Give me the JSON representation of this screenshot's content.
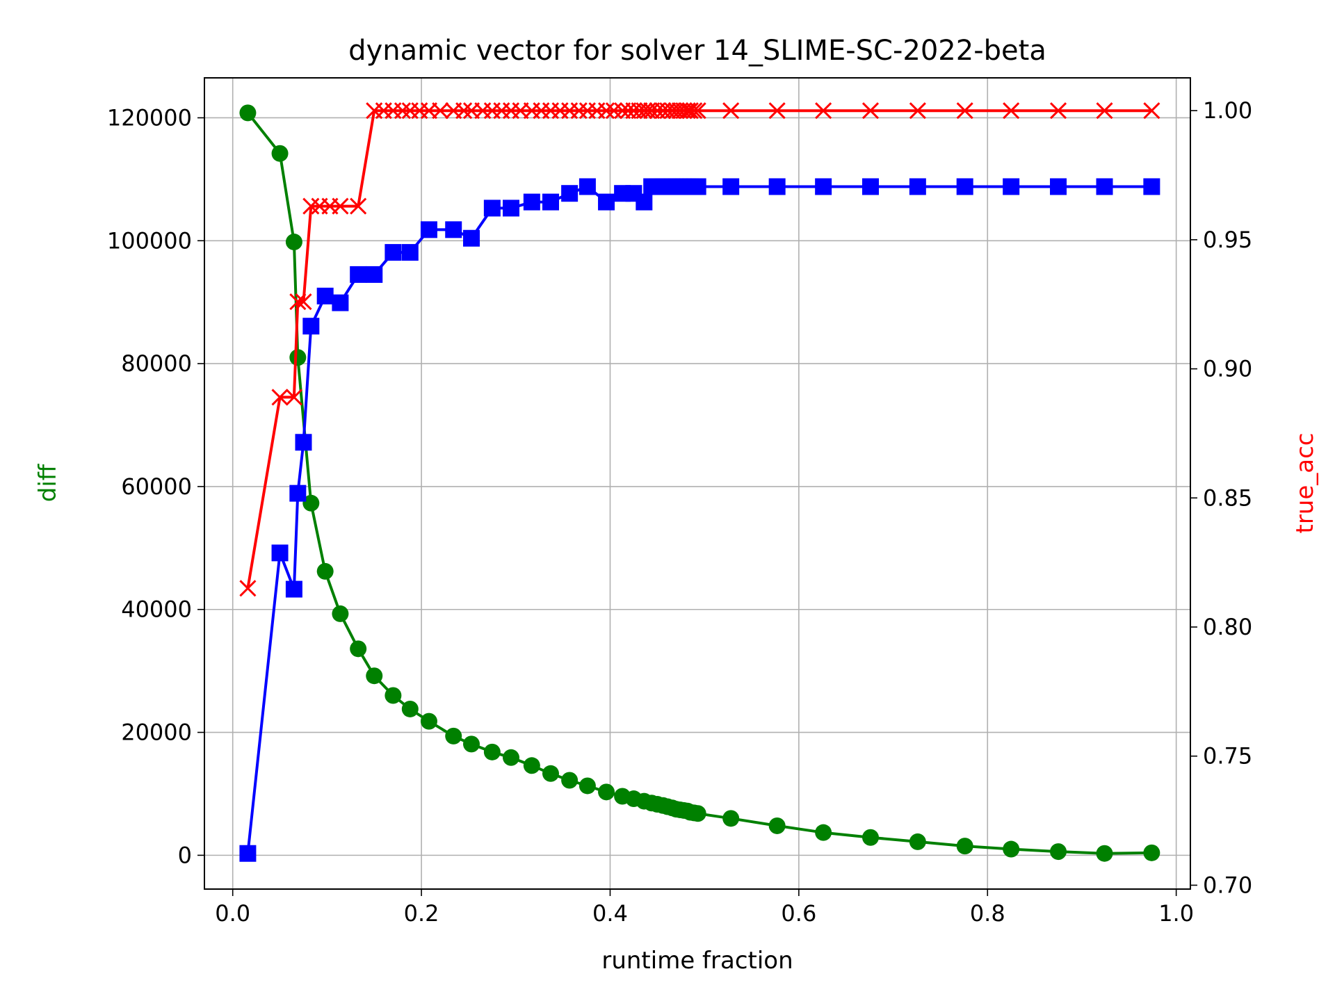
{
  "chart_data": {
    "type": "line",
    "title": "dynamic vector for solver 14_SLIME-SC-2022-beta",
    "xlabel": "runtime fraction",
    "ylabel": "diff",
    "y2label": "true_acc",
    "xlim": [
      -0.03,
      1.015
    ],
    "ylim": [
      -5500,
      126500
    ],
    "y2lim": [
      0.6985,
      1.0127
    ],
    "xticks": [
      "0.0",
      "0.2",
      "0.4",
      "0.6",
      "0.8",
      "1.0"
    ],
    "xtick_values": [
      0.0,
      0.2,
      0.4,
      0.6,
      0.8,
      1.0
    ],
    "yticks": [
      "0",
      "20000",
      "40000",
      "60000",
      "80000",
      "100000",
      "120000"
    ],
    "ytick_values": [
      0,
      20000,
      40000,
      60000,
      80000,
      100000,
      120000
    ],
    "y2ticks": [
      "0.70",
      "0.75",
      "0.80",
      "0.85",
      "0.90",
      "0.95",
      "1.00"
    ],
    "y2tick_values": [
      0.7,
      0.75,
      0.8,
      0.85,
      0.9,
      0.95,
      1.0
    ],
    "grid": true,
    "colors": {
      "diff": "#008000",
      "blue_series": "#0000ff",
      "true_acc": "#ff0000"
    },
    "series": [
      {
        "axis": "left",
        "color": "#008000",
        "marker": "circle",
        "x": [
          0.016,
          0.05,
          0.065,
          0.069,
          0.083,
          0.098,
          0.114,
          0.133,
          0.15,
          0.17,
          0.188,
          0.208,
          0.234,
          0.253,
          0.275,
          0.295,
          0.317,
          0.337,
          0.357,
          0.376,
          0.396,
          0.413,
          0.425,
          0.436,
          0.444,
          0.45,
          0.456,
          0.461,
          0.466,
          0.47,
          0.474,
          0.478,
          0.482,
          0.485,
          0.489,
          0.493,
          0.528,
          0.577,
          0.626,
          0.676,
          0.726,
          0.776,
          0.825,
          0.875,
          0.924,
          0.974
        ],
        "y": [
          120800,
          114200,
          99800,
          81000,
          57300,
          46200,
          39300,
          33600,
          29200,
          26000,
          23800,
          21800,
          19400,
          18100,
          16800,
          15900,
          14600,
          13300,
          12200,
          11300,
          10300,
          9600,
          9200,
          8800,
          8500,
          8300,
          8100,
          7900,
          7700,
          7500,
          7400,
          7300,
          7200,
          7000,
          6900,
          6800,
          6000,
          4800,
          3700,
          2900,
          2200,
          1500,
          1000,
          600,
          300,
          400
        ]
      },
      {
        "axis": "left",
        "color": "#0000ff",
        "marker": "square",
        "x": [
          0.016,
          0.05,
          0.065,
          0.069,
          0.075,
          0.083,
          0.098,
          0.114,
          0.133,
          0.15,
          0.17,
          0.188,
          0.208,
          0.234,
          0.253,
          0.275,
          0.295,
          0.317,
          0.337,
          0.357,
          0.376,
          0.396,
          0.413,
          0.425,
          0.436,
          0.444,
          0.45,
          0.456,
          0.461,
          0.466,
          0.47,
          0.474,
          0.478,
          0.482,
          0.485,
          0.489,
          0.493,
          0.528,
          0.577,
          0.626,
          0.676,
          0.726,
          0.776,
          0.825,
          0.875,
          0.924,
          0.974
        ],
        "y": [
          300,
          49200,
          43300,
          58900,
          67200,
          86100,
          91000,
          89900,
          94500,
          94500,
          98100,
          98100,
          101800,
          101800,
          100400,
          105300,
          105300,
          106300,
          106300,
          107700,
          108800,
          106300,
          107700,
          107700,
          106300,
          108800,
          108800,
          108800,
          108800,
          108800,
          108800,
          108800,
          108800,
          108800,
          108800,
          108800,
          108800,
          108800,
          108800,
          108800,
          108800,
          108800,
          108800,
          108800,
          108800,
          108800,
          108800
        ]
      },
      {
        "axis": "right",
        "color": "#ff0000",
        "marker": "x",
        "x": [
          0.016,
          0.05,
          0.065,
          0.069,
          0.075,
          0.083,
          0.092,
          0.103,
          0.114,
          0.133,
          0.15,
          0.16,
          0.17,
          0.18,
          0.188,
          0.198,
          0.208,
          0.22,
          0.234,
          0.245,
          0.253,
          0.265,
          0.275,
          0.285,
          0.295,
          0.305,
          0.317,
          0.327,
          0.337,
          0.347,
          0.357,
          0.367,
          0.376,
          0.386,
          0.396,
          0.404,
          0.413,
          0.419,
          0.425,
          0.431,
          0.436,
          0.44,
          0.444,
          0.45,
          0.456,
          0.461,
          0.466,
          0.47,
          0.474,
          0.478,
          0.482,
          0.485,
          0.489,
          0.493,
          0.528,
          0.577,
          0.626,
          0.676,
          0.726,
          0.776,
          0.825,
          0.875,
          0.924,
          0.974
        ],
        "y": [
          0.815,
          0.889,
          0.889,
          0.926,
          0.926,
          0.963,
          0.963,
          0.963,
          0.963,
          0.963,
          1.0,
          1.0,
          1.0,
          1.0,
          1.0,
          1.0,
          1.0,
          1.0,
          1.0,
          1.0,
          1.0,
          1.0,
          1.0,
          1.0,
          1.0,
          1.0,
          1.0,
          1.0,
          1.0,
          1.0,
          1.0,
          1.0,
          1.0,
          1.0,
          1.0,
          1.0,
          1.0,
          1.0,
          1.0,
          1.0,
          1.0,
          1.0,
          1.0,
          1.0,
          1.0,
          1.0,
          1.0,
          1.0,
          1.0,
          1.0,
          1.0,
          1.0,
          1.0,
          1.0,
          1.0,
          1.0,
          1.0,
          1.0,
          1.0,
          1.0,
          1.0,
          1.0,
          1.0,
          1.0
        ]
      }
    ]
  }
}
